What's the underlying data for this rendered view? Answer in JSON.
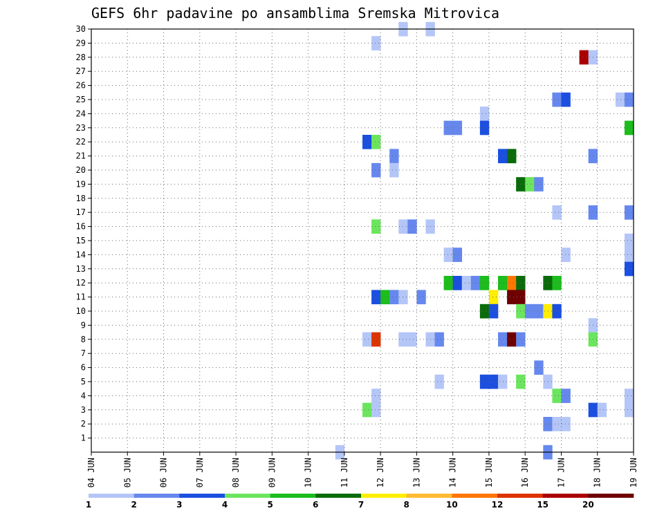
{
  "chart_data": {
    "type": "heatmap",
    "title": "GEFS 6hr padavine po ansamblima Sremska Mitrovica",
    "xlabel": "",
    "ylabel": "",
    "x_ticks": [
      "04 JUN",
      "05 JUN",
      "06 JUN",
      "07 JUN",
      "08 JUN",
      "09 JUN",
      "10 JUN",
      "11 JUN",
      "12 JUN",
      "13 JUN",
      "14 JUN",
      "15 JUN",
      "16 JUN",
      "17 JUN",
      "18 JUN",
      "19 JUN"
    ],
    "x_range": [
      "04 JUN 00h",
      "19 JUN 00h"
    ],
    "step_hours": 6,
    "y_ticks": [
      1,
      2,
      3,
      4,
      5,
      6,
      7,
      8,
      9,
      10,
      11,
      12,
      13,
      14,
      15,
      16,
      17,
      18,
      19,
      20,
      21,
      22,
      23,
      24,
      25,
      26,
      27,
      28,
      29,
      30
    ],
    "y_range": [
      0,
      30
    ],
    "grid": true,
    "colorbar": {
      "labels": [
        "1",
        "2",
        "3",
        "4",
        "5",
        "6",
        "7",
        "8",
        "10",
        "12",
        "15",
        "20"
      ],
      "colors": [
        "#b4c6f7",
        "#6688ee",
        "#1b4fe0",
        "#6ce55e",
        "#1cbd1c",
        "#0a6b0a",
        "#ffee00",
        "#ffbb33",
        "#ff7700",
        "#dd3300",
        "#aa0000",
        "#6e0000"
      ]
    },
    "cells": [
      {
        "m": 30,
        "t": "12 JUN 12h",
        "v": 1
      },
      {
        "m": 30,
        "t": "13 JUN 06h",
        "v": 1
      },
      {
        "m": 29,
        "t": "11 JUN 18h",
        "v": 1
      },
      {
        "m": 28,
        "t": "17 JUN 12h",
        "v": 15
      },
      {
        "m": 28,
        "t": "17 JUN 18h",
        "v": 1
      },
      {
        "m": 25,
        "t": "16 JUN 18h",
        "v": 2
      },
      {
        "m": 25,
        "t": "17 JUN 00h",
        "v": 3
      },
      {
        "m": 25,
        "t": "18 JUN 12h",
        "v": 1
      },
      {
        "m": 25,
        "t": "18 JUN 18h",
        "v": 2
      },
      {
        "m": 24,
        "t": "14 JUN 18h",
        "v": 1
      },
      {
        "m": 23,
        "t": "13 JUN 18h",
        "v": 2
      },
      {
        "m": 23,
        "t": "14 JUN 00h",
        "v": 2
      },
      {
        "m": 23,
        "t": "14 JUN 18h",
        "v": 3
      },
      {
        "m": 23,
        "t": "18 JUN 18h",
        "v": 5
      },
      {
        "m": 22,
        "t": "11 JUN 12h",
        "v": 3
      },
      {
        "m": 22,
        "t": "11 JUN 18h",
        "v": 4
      },
      {
        "m": 21,
        "t": "12 JUN 06h",
        "v": 2
      },
      {
        "m": 21,
        "t": "15 JUN 06h",
        "v": 3
      },
      {
        "m": 21,
        "t": "15 JUN 12h",
        "v": 6
      },
      {
        "m": 21,
        "t": "17 JUN 18h",
        "v": 2
      },
      {
        "m": 20,
        "t": "11 JUN 18h",
        "v": 2
      },
      {
        "m": 20,
        "t": "12 JUN 06h",
        "v": 1
      },
      {
        "m": 19,
        "t": "15 JUN 18h",
        "v": 6
      },
      {
        "m": 19,
        "t": "16 JUN 00h",
        "v": 4
      },
      {
        "m": 19,
        "t": "16 JUN 06h",
        "v": 2
      },
      {
        "m": 17,
        "t": "16 JUN 18h",
        "v": 1
      },
      {
        "m": 17,
        "t": "17 JUN 18h",
        "v": 2
      },
      {
        "m": 17,
        "t": "18 JUN 18h",
        "v": 2
      },
      {
        "m": 16,
        "t": "11 JUN 18h",
        "v": 4
      },
      {
        "m": 16,
        "t": "12 JUN 12h",
        "v": 1
      },
      {
        "m": 16,
        "t": "12 JUN 18h",
        "v": 2
      },
      {
        "m": 16,
        "t": "13 JUN 06h",
        "v": 1
      },
      {
        "m": 15,
        "t": "18 JUN 18h",
        "v": 1
      },
      {
        "m": 14,
        "t": "13 JUN 18h",
        "v": 1
      },
      {
        "m": 14,
        "t": "14 JUN 00h",
        "v": 2
      },
      {
        "m": 14,
        "t": "17 JUN 00h",
        "v": 1
      },
      {
        "m": 14,
        "t": "18 JUN 18h",
        "v": 1
      },
      {
        "m": 13,
        "t": "18 JUN 18h",
        "v": 3
      },
      {
        "m": 12,
        "t": "13 JUN 18h",
        "v": 5
      },
      {
        "m": 12,
        "t": "14 JUN 00h",
        "v": 3
      },
      {
        "m": 12,
        "t": "14 JUN 06h",
        "v": 1
      },
      {
        "m": 12,
        "t": "14 JUN 12h",
        "v": 2
      },
      {
        "m": 12,
        "t": "14 JUN 18h",
        "v": 5
      },
      {
        "m": 12,
        "t": "15 JUN 06h",
        "v": 5
      },
      {
        "m": 12,
        "t": "15 JUN 12h",
        "v": 10
      },
      {
        "m": 12,
        "t": "15 JUN 18h",
        "v": 6
      },
      {
        "m": 12,
        "t": "16 JUN 12h",
        "v": 6
      },
      {
        "m": 12,
        "t": "16 JUN 18h",
        "v": 5
      },
      {
        "m": 11,
        "t": "11 JUN 18h",
        "v": 3
      },
      {
        "m": 11,
        "t": "12 JUN 00h",
        "v": 5
      },
      {
        "m": 11,
        "t": "12 JUN 06h",
        "v": 2
      },
      {
        "m": 11,
        "t": "12 JUN 12h",
        "v": 1
      },
      {
        "m": 11,
        "t": "13 JUN 00h",
        "v": 2
      },
      {
        "m": 11,
        "t": "15 JUN 00h",
        "v": 7
      },
      {
        "m": 11,
        "t": "15 JUN 12h",
        "v": 20
      },
      {
        "m": 11,
        "t": "15 JUN 18h",
        "v": 20
      },
      {
        "m": 10,
        "t": "14 JUN 18h",
        "v": 6
      },
      {
        "m": 10,
        "t": "15 JUN 00h",
        "v": 3
      },
      {
        "m": 10,
        "t": "15 JUN 18h",
        "v": 4
      },
      {
        "m": 10,
        "t": "16 JUN 00h",
        "v": 2
      },
      {
        "m": 10,
        "t": "16 JUN 06h",
        "v": 2
      },
      {
        "m": 10,
        "t": "16 JUN 12h",
        "v": 7
      },
      {
        "m": 10,
        "t": "16 JUN 18h",
        "v": 3
      },
      {
        "m": 9,
        "t": "17 JUN 18h",
        "v": 1
      },
      {
        "m": 8,
        "t": "11 JUN 12h",
        "v": 1
      },
      {
        "m": 8,
        "t": "11 JUN 18h",
        "v": 12
      },
      {
        "m": 8,
        "t": "12 JUN 12h",
        "v": 1
      },
      {
        "m": 8,
        "t": "12 JUN 18h",
        "v": 1
      },
      {
        "m": 8,
        "t": "13 JUN 06h",
        "v": 1
      },
      {
        "m": 8,
        "t": "13 JUN 12h",
        "v": 2
      },
      {
        "m": 8,
        "t": "15 JUN 06h",
        "v": 2
      },
      {
        "m": 8,
        "t": "15 JUN 12h",
        "v": 20
      },
      {
        "m": 8,
        "t": "15 JUN 18h",
        "v": 2
      },
      {
        "m": 8,
        "t": "17 JUN 18h",
        "v": 4
      },
      {
        "m": 6,
        "t": "16 JUN 06h",
        "v": 2
      },
      {
        "m": 5,
        "t": "13 JUN 12h",
        "v": 1
      },
      {
        "m": 5,
        "t": "14 JUN 18h",
        "v": 3
      },
      {
        "m": 5,
        "t": "15 JUN 00h",
        "v": 3
      },
      {
        "m": 5,
        "t": "15 JUN 06h",
        "v": 1
      },
      {
        "m": 5,
        "t": "15 JUN 18h",
        "v": 4
      },
      {
        "m": 5,
        "t": "16 JUN 12h",
        "v": 1
      },
      {
        "m": 4,
        "t": "11 JUN 18h",
        "v": 1
      },
      {
        "m": 4,
        "t": "16 JUN 18h",
        "v": 4
      },
      {
        "m": 4,
        "t": "17 JUN 00h",
        "v": 2
      },
      {
        "m": 4,
        "t": "18 JUN 18h",
        "v": 1
      },
      {
        "m": 3,
        "t": "11 JUN 12h",
        "v": 4
      },
      {
        "m": 3,
        "t": "11 JUN 18h",
        "v": 1
      },
      {
        "m": 3,
        "t": "17 JUN 18h",
        "v": 3
      },
      {
        "m": 3,
        "t": "18 JUN 00h",
        "v": 1
      },
      {
        "m": 3,
        "t": "18 JUN 18h",
        "v": 1
      },
      {
        "m": 2,
        "t": "16 JUN 12h",
        "v": 2
      },
      {
        "m": 2,
        "t": "16 JUN 18h",
        "v": 1
      },
      {
        "m": 2,
        "t": "17 JUN 00h",
        "v": 1
      },
      {
        "m": 0,
        "t": "10 JUN 18h",
        "v": 1
      },
      {
        "m": 0,
        "t": "16 JUN 12h",
        "v": 2
      }
    ]
  }
}
